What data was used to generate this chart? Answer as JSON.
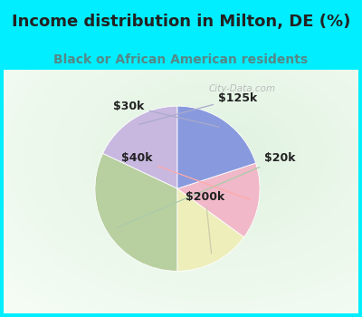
{
  "title": "Income distribution in Milton, DE (%)",
  "subtitle": "Black or African American residents",
  "labels": [
    "$125k",
    "$20k",
    "$200k",
    "$40k",
    "$30k"
  ],
  "sizes": [
    18,
    32,
    15,
    15,
    20
  ],
  "colors": [
    "#c8b8e0",
    "#b8cfa0",
    "#eeeebb",
    "#f0b8c8",
    "#8899dd"
  ],
  "bg_color_top": "#00eeff",
  "bg_color_chart_outer": "#c8e8c8",
  "title_color": "#222222",
  "subtitle_color": "#558888",
  "watermark": "City-Data.com",
  "start_angle": 90,
  "label_fontsize": 9,
  "title_fontsize": 13,
  "subtitle_fontsize": 10
}
